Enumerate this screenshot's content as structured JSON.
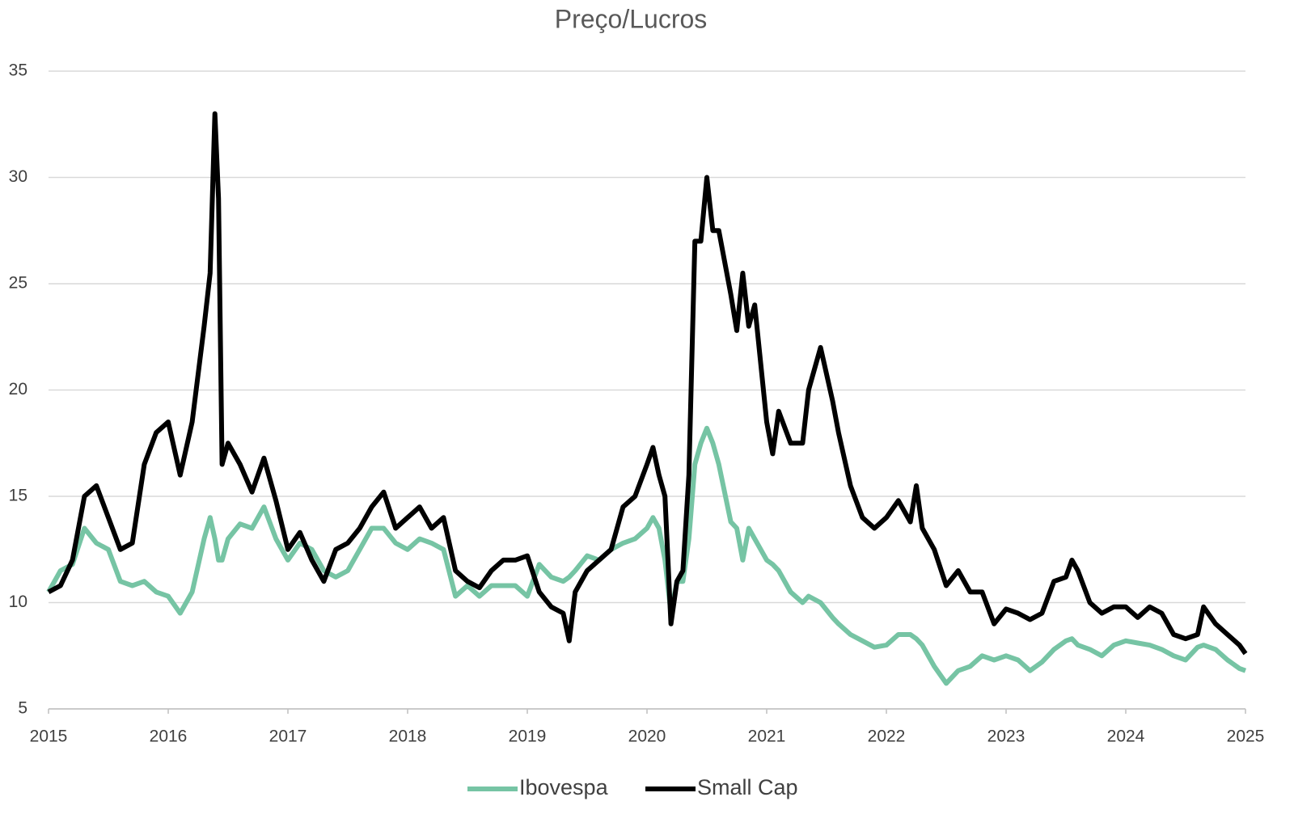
{
  "chart_data": {
    "type": "line",
    "title": "Preço/Lucros",
    "x": [
      2015.0,
      2015.1,
      2015.2,
      2015.3,
      2015.4,
      2015.5,
      2015.6,
      2015.7,
      2015.8,
      2015.9,
      2016.0,
      2016.1,
      2016.2,
      2016.3,
      2016.35,
      2016.39,
      2016.42,
      2016.45,
      2016.5,
      2016.6,
      2016.7,
      2016.8,
      2016.9,
      2017.0,
      2017.1,
      2017.2,
      2017.3,
      2017.4,
      2017.5,
      2017.6,
      2017.7,
      2017.8,
      2017.9,
      2018.0,
      2018.1,
      2018.2,
      2018.3,
      2018.4,
      2018.5,
      2018.6,
      2018.7,
      2018.8,
      2018.9,
      2019.0,
      2019.1,
      2019.2,
      2019.3,
      2019.35,
      2019.4,
      2019.5,
      2019.6,
      2019.7,
      2019.8,
      2019.9,
      2020.0,
      2020.05,
      2020.1,
      2020.15,
      2020.2,
      2020.25,
      2020.3,
      2020.35,
      2020.4,
      2020.45,
      2020.5,
      2020.55,
      2020.6,
      2020.7,
      2020.75,
      2020.8,
      2020.85,
      2020.9,
      2021.0,
      2021.05,
      2021.1,
      2021.2,
      2021.3,
      2021.35,
      2021.45,
      2021.55,
      2021.6,
      2021.7,
      2021.8,
      2021.9,
      2022.0,
      2022.1,
      2022.2,
      2022.25,
      2022.3,
      2022.4,
      2022.5,
      2022.6,
      2022.7,
      2022.8,
      2022.9,
      2023.0,
      2023.1,
      2023.2,
      2023.3,
      2023.4,
      2023.5,
      2023.55,
      2023.6,
      2023.7,
      2023.8,
      2023.9,
      2024.0,
      2024.1,
      2024.2,
      2024.3,
      2024.4,
      2024.5,
      2024.6,
      2024.65,
      2024.75,
      2024.85,
      2024.95,
      2025.0
    ],
    "series": [
      {
        "name": "Ibovespa",
        "color": "#76c4a4",
        "values": [
          10.5,
          11.5,
          11.8,
          13.5,
          12.8,
          12.5,
          11.0,
          10.8,
          11.0,
          10.5,
          10.3,
          9.5,
          10.5,
          13.0,
          14.0,
          13.0,
          12.0,
          12.0,
          13.0,
          13.7,
          13.5,
          14.5,
          13.0,
          12.0,
          12.8,
          12.5,
          11.5,
          11.2,
          11.5,
          12.5,
          13.5,
          13.5,
          12.8,
          12.5,
          13.0,
          12.8,
          12.5,
          10.3,
          10.8,
          10.3,
          10.8,
          10.8,
          10.8,
          10.3,
          11.8,
          11.2,
          11.0,
          11.2,
          11.5,
          12.2,
          12.0,
          12.5,
          12.8,
          13.0,
          13.5,
          14.0,
          13.5,
          12.0,
          9.5,
          11.0,
          11.0,
          13.0,
          16.5,
          17.5,
          18.2,
          17.5,
          16.5,
          13.8,
          13.5,
          12.0,
          13.5,
          13.0,
          12.0,
          11.8,
          11.5,
          10.5,
          10.0,
          10.3,
          10.0,
          9.3,
          9.0,
          8.5,
          8.2,
          7.9,
          8.0,
          8.5,
          8.5,
          8.3,
          8.0,
          7.0,
          6.2,
          6.8,
          7.0,
          7.5,
          7.3,
          7.5,
          7.3,
          6.8,
          7.2,
          7.8,
          8.2,
          8.3,
          8.0,
          7.8,
          7.5,
          8.0,
          8.2,
          8.1,
          8.0,
          7.8,
          7.5,
          7.3,
          7.9,
          8.0,
          7.8,
          7.3,
          6.9,
          6.8
        ]
      },
      {
        "name": "Small Cap",
        "color": "#000000",
        "values": [
          10.5,
          10.8,
          12.0,
          15.0,
          15.5,
          14.0,
          12.5,
          12.8,
          16.5,
          18.0,
          18.5,
          16.0,
          18.5,
          23.0,
          25.5,
          33.0,
          29.0,
          16.5,
          17.5,
          16.5,
          15.2,
          16.8,
          14.8,
          12.5,
          13.3,
          12.0,
          11.0,
          12.5,
          12.8,
          13.5,
          14.5,
          15.2,
          13.5,
          14.0,
          14.5,
          13.5,
          14.0,
          11.5,
          11.0,
          10.7,
          11.5,
          12.0,
          12.0,
          12.2,
          10.5,
          9.8,
          9.5,
          8.2,
          10.5,
          11.5,
          12.0,
          12.5,
          14.5,
          15.0,
          16.5,
          17.3,
          16.0,
          15.0,
          9.0,
          11.0,
          11.5,
          16.0,
          27.0,
          27.0,
          30.0,
          27.5,
          27.5,
          24.5,
          22.8,
          25.5,
          23.0,
          24.0,
          18.5,
          17.0,
          19.0,
          17.5,
          17.5,
          20.0,
          22.0,
          19.5,
          18.0,
          15.5,
          14.0,
          13.5,
          14.0,
          14.8,
          13.8,
          15.5,
          13.5,
          12.5,
          10.8,
          11.5,
          10.5,
          10.5,
          9.0,
          9.7,
          9.5,
          9.2,
          9.5,
          11.0,
          11.2,
          12.0,
          11.5,
          10.0,
          9.5,
          9.8,
          9.8,
          9.3,
          9.8,
          9.5,
          8.5,
          8.3,
          8.5,
          9.8,
          9.0,
          8.5,
          8.0,
          7.6
        ]
      }
    ],
    "xlim": [
      2015,
      2025
    ],
    "xticks": [
      2015,
      2016,
      2017,
      2018,
      2019,
      2020,
      2021,
      2022,
      2023,
      2024,
      2025
    ],
    "ylim": [
      5,
      35
    ],
    "yticks": [
      5,
      10,
      15,
      20,
      25,
      30,
      35
    ],
    "grid": true,
    "legend": "bottom"
  }
}
